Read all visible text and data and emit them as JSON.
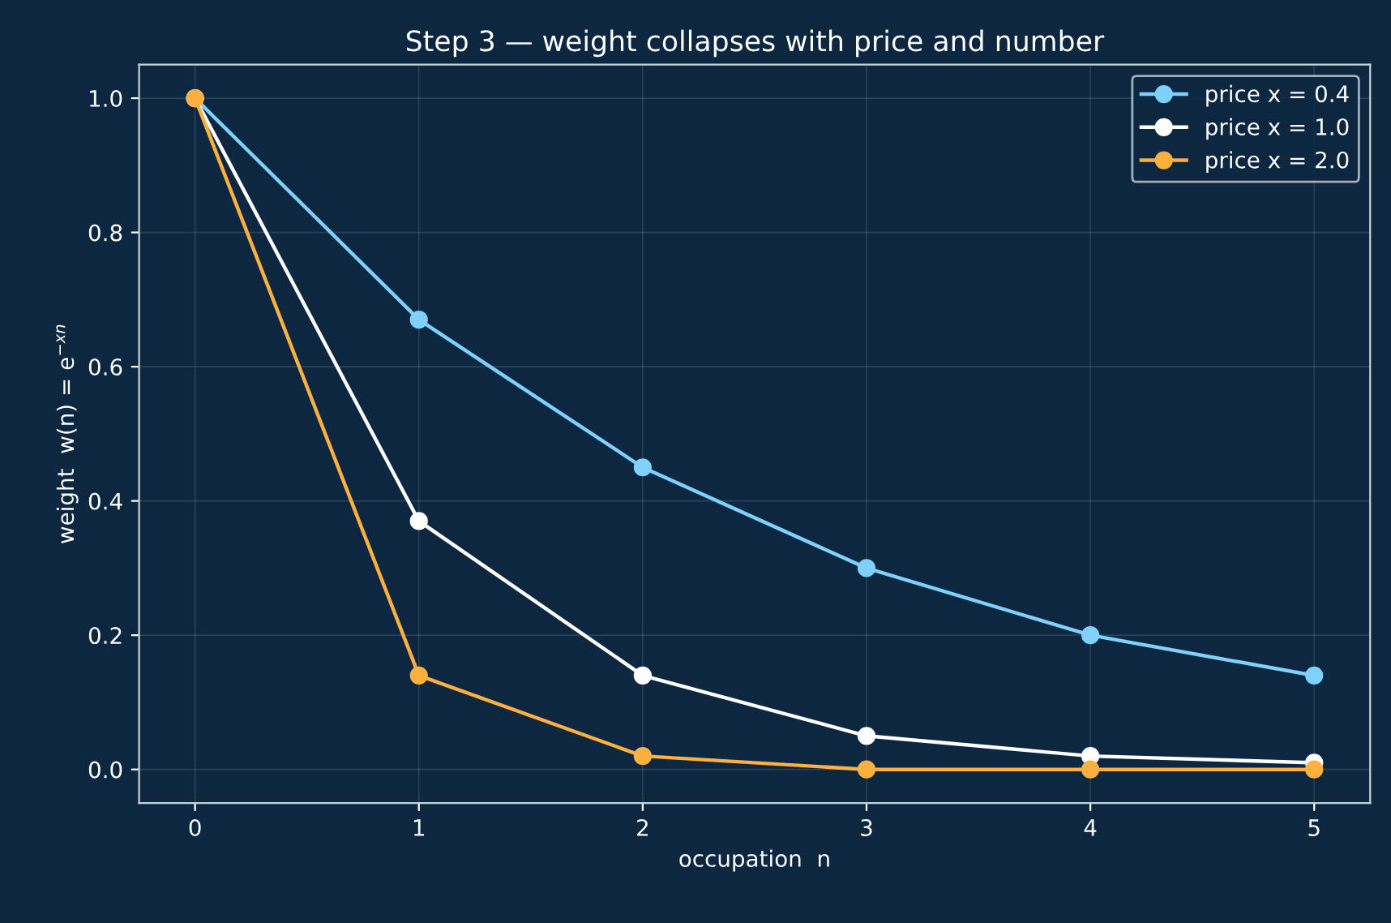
{
  "chart_data": {
    "type": "line",
    "title": "Step 3 — weight collapses with price and number",
    "xlabel": "occupation  n",
    "ylabel": "weight  w(n) = e$^{−xn}$",
    "x": [
      0,
      1,
      2,
      3,
      4,
      5
    ],
    "series": [
      {
        "name": "price x = 0.4",
        "color": "#7fd0fb",
        "values": [
          1.0,
          0.67,
          0.45,
          0.3,
          0.2,
          0.14
        ]
      },
      {
        "name": "price x = 1.0",
        "color": "#ffffff",
        "values": [
          1.0,
          0.37,
          0.14,
          0.05,
          0.02,
          0.01
        ]
      },
      {
        "name": "price x = 2.0",
        "color": "#fbb040",
        "values": [
          1.0,
          0.14,
          0.02,
          0.0,
          0.0,
          0.0
        ]
      }
    ],
    "xlim": [
      -0.25,
      5.25
    ],
    "xticks": [
      0,
      1,
      2,
      3,
      4,
      5
    ],
    "ylim": [
      -0.05,
      1.05
    ],
    "yticks": [
      {
        "value": 0,
        "label": "0.0"
      },
      0.2,
      0.4,
      0.6,
      0.8,
      {
        "value": 1,
        "label": "1.0"
      }
    ],
    "grid": true,
    "legend": "top right",
    "marker": "circle",
    "line_style": "solid"
  }
}
